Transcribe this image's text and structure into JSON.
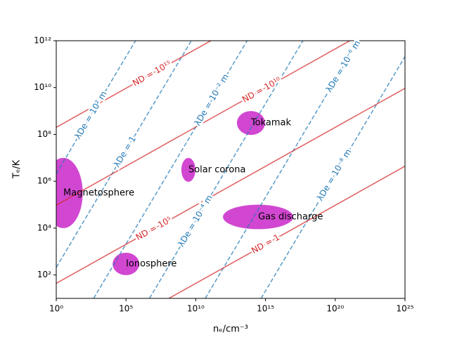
{
  "chart_data": {
    "type": "line",
    "xlabel": "nₑ/cm⁻³",
    "ylabel": "Tₑ/K",
    "xscale": "log",
    "yscale": "log",
    "xlim": [
      1,
      1e+25
    ],
    "ylim": [
      10,
      1000000000000.0
    ],
    "xticks": [
      {
        "value": 1,
        "label": "10⁰"
      },
      {
        "value": 100000.0,
        "label": "10⁵"
      },
      {
        "value": 10000000000.0,
        "label": "10¹⁰"
      },
      {
        "value": 1000000000000000.0,
        "label": "10¹⁵"
      },
      {
        "value": 1e+20,
        "label": "10²⁰"
      },
      {
        "value": 1e+25,
        "label": "10²⁵"
      }
    ],
    "yticks": [
      {
        "value": 100,
        "label": "10²"
      },
      {
        "value": 10000.0,
        "label": "10⁴"
      },
      {
        "value": 1000000.0,
        "label": "10⁶"
      },
      {
        "value": 100000000.0,
        "label": "10⁸"
      },
      {
        "value": 10000000000.0,
        "label": "10¹⁰"
      },
      {
        "value": 1000000000000.0,
        "label": "10¹²"
      }
    ],
    "series": [
      {
        "name": "λDe = 10² m",
        "color": "#1f77b4",
        "style": "dashed",
        "x": [
          1,
          480000.0
        ],
        "values": [
          2100000.0,
          1000000000000.0
        ]
      },
      {
        "name": "λDe = 1",
        "color": "#1f77b4",
        "style": "dashed",
        "x": [
          1,
          4800000000.0
        ],
        "values": [
          210,
          1000000000000.0
        ]
      },
      {
        "name": "λDe = 10⁻² m",
        "color": "#1f77b4",
        "style": "dashed",
        "x": [
          480,
          48000000000000.0
        ],
        "values": [
          10,
          1000000000000.0
        ]
      },
      {
        "name": "λDe = 10⁻⁴ m",
        "color": "#1f77b4",
        "style": "dashed",
        "x": [
          4800000.0,
          4.8e+17
        ],
        "values": [
          10,
          1000000000000.0
        ]
      },
      {
        "name": "λDe = 10⁻⁶ m",
        "color": "#1f77b4",
        "style": "dashed",
        "x": [
          48000000000.0,
          4.8e+21
        ],
        "values": [
          10,
          1000000000000.0
        ]
      },
      {
        "name": "λDe = 10⁻⁸ m",
        "color": "#1f77b4",
        "style": "dashed",
        "x": [
          480000000000000.0,
          1e+25
        ],
        "values": [
          10,
          210000000000.0
        ]
      },
      {
        "name": "ND = 1",
        "color": "#d62728",
        "style": "solid",
        "x": [
          120000000.0,
          1e+25
        ],
        "values": [
          10,
          4400000.0
        ]
      },
      {
        "name": "ND = 10⁵",
        "color": "#d62728",
        "style": "solid",
        "x": [
          1,
          1e+25
        ],
        "values": [
          44,
          9300000000.0
        ]
      },
      {
        "name": "ND = 10¹⁰",
        "color": "#d62728",
        "style": "solid",
        "x": [
          1,
          1.1e+21
        ],
        "values": [
          95000.0,
          1000000000000.0
        ]
      },
      {
        "name": "ND = 10¹⁵",
        "color": "#d62728",
        "style": "solid",
        "x": [
          1,
          120000000000.0
        ],
        "values": [
          200000000.0,
          1000000000000.0
        ]
      }
    ],
    "regions": [
      {
        "label": "Magnetosphere",
        "color": "#cc33cc",
        "xrange": [
          0.13,
          79
        ],
        "yrange": [
          10000.0,
          10000000.0
        ]
      },
      {
        "label": "Ionosphere",
        "color": "#cc33cc",
        "xrange": [
          11000.0,
          890000.0
        ],
        "yrange": [
          98,
          890
        ]
      },
      {
        "label": "Solar corona",
        "color": "#cc33cc",
        "xrange": [
          930000000.0,
          9500000000.0
        ],
        "yrange": [
          950000.0,
          10000000.0
        ]
      },
      {
        "label": "Tokamak",
        "color": "#cc33cc",
        "xrange": [
          8900000000000.0,
          930000000000000.0
        ],
        "yrange": [
          95000000.0,
          1000000000.0
        ]
      },
      {
        "label": "Gas discharge",
        "color": "#cc33cc",
        "xrange": [
          890000000000.0,
          9.8e+16
        ],
        "yrange": [
          9000.0,
          100000.0
        ]
      }
    ]
  }
}
